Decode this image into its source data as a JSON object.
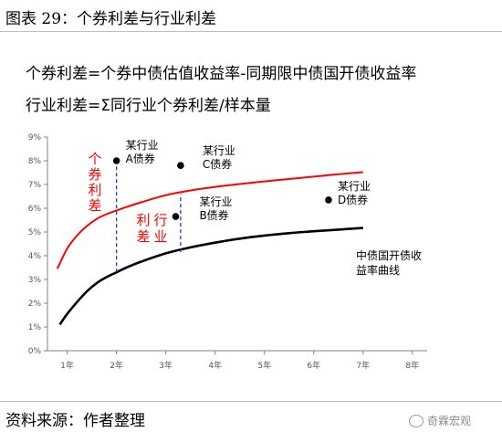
{
  "figure": {
    "title": "图表 29：个券利差与行业利差",
    "formula1": "个券利差=个券中债估值收益率-同期限中债国开债收益率",
    "formula2": "行业利差=Σ同行业个券利差/样本量",
    "source": "资料来源：作者整理",
    "watermark": "奇霖宏观"
  },
  "chart_data": {
    "type": "line",
    "title": "",
    "xlabel": "",
    "ylabel": "",
    "x_ticks": [
      "1年",
      "2年",
      "3年",
      "4年",
      "5年",
      "6年",
      "7年",
      "8年"
    ],
    "y_ticks": [
      "0%",
      "1%",
      "2%",
      "3%",
      "4%",
      "5%",
      "6%",
      "7%",
      "8%",
      "9%"
    ],
    "xlim": [
      0.6,
      8.3
    ],
    "ylim": [
      0,
      9
    ],
    "grid": false,
    "colors": {
      "industry_curve": "#ff0000",
      "cdb_curve": "#000000",
      "annotation": "#ff0000",
      "dash": "#1a3ccc"
    },
    "series": [
      {
        "name": "",
        "color": "#ff0000",
        "x": [
          0.8,
          1.0,
          1.2,
          1.4,
          1.6,
          1.8,
          2.0,
          2.2,
          2.5,
          3.0,
          3.5,
          4.0,
          4.5,
          5.0,
          5.5,
          6.0,
          6.5,
          7.0
        ],
        "y": [
          3.45,
          4.3,
          4.85,
          5.25,
          5.55,
          5.75,
          5.9,
          6.05,
          6.25,
          6.55,
          6.75,
          6.9,
          7.02,
          7.13,
          7.23,
          7.33,
          7.43,
          7.52
        ]
      },
      {
        "name": "中债国开债收益率曲线",
        "color": "#000000",
        "x": [
          0.85,
          1.0,
          1.2,
          1.4,
          1.6,
          1.8,
          2.0,
          2.2,
          2.5,
          3.0,
          3.5,
          4.0,
          4.5,
          5.0,
          5.5,
          6.0,
          6.5,
          7.0
        ],
        "y": [
          1.1,
          1.55,
          2.05,
          2.5,
          2.85,
          3.1,
          3.3,
          3.5,
          3.75,
          4.1,
          4.35,
          4.55,
          4.72,
          4.85,
          4.95,
          5.03,
          5.1,
          5.17
        ]
      }
    ],
    "points": [
      {
        "x": 2.0,
        "y": 8.0,
        "label1": "某行业",
        "label2": "A债券"
      },
      {
        "x": 3.3,
        "y": 7.8,
        "label1": "某行业",
        "label2": "C债券"
      },
      {
        "x": 3.2,
        "y": 5.65,
        "label1": "某行业",
        "label2": "B债券"
      },
      {
        "x": 6.3,
        "y": 6.35,
        "label1": "某行业",
        "label2": "D债券"
      }
    ],
    "annotations": {
      "individual_spread": "个券利差",
      "industry_spread_col1": "利差",
      "industry_spread_col2": "行业",
      "curve_label_line1": "中债国开债收",
      "curve_label_line2": "益率曲线"
    },
    "spans": [
      {
        "x": 2.0,
        "y_from": 3.3,
        "y_to": 8.0
      },
      {
        "x": 3.3,
        "y_from": 4.15,
        "y_to": 6.6
      }
    ]
  }
}
